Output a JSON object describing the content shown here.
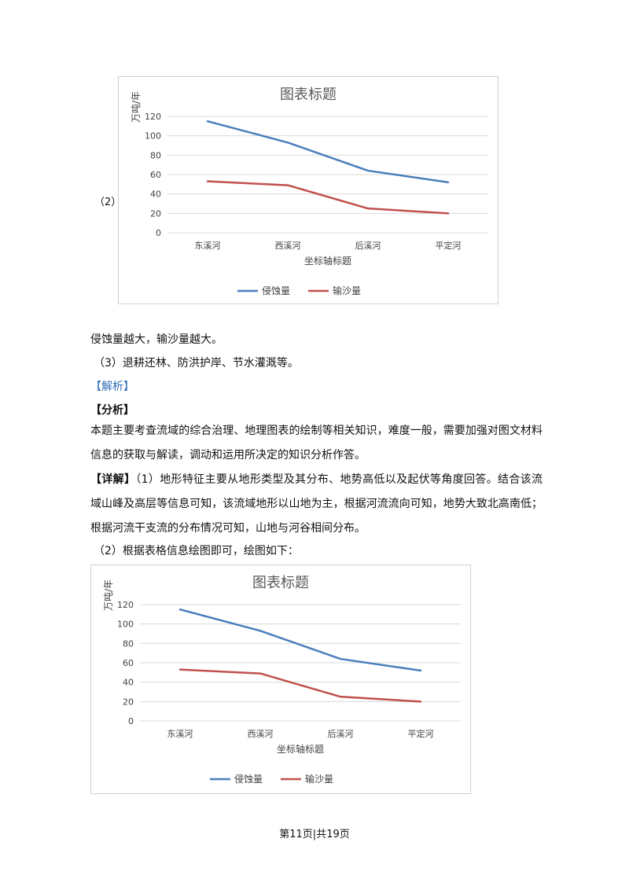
{
  "charts": [
    {
      "part_label": "（2）",
      "chart_data": {
        "type": "line",
        "title": "图表标题",
        "xlabel": "坐标轴标题",
        "ylabel": "万吨/年",
        "categories": [
          "东溪河",
          "西溪河",
          "后溪河",
          "平定河"
        ],
        "series": [
          {
            "name": "侵蚀量",
            "values": [
              115,
              93,
              64,
              52
            ],
            "color": "#4a7ebb"
          },
          {
            "name": "输沙量",
            "values": [
              53,
              49,
              25,
              20
            ],
            "color": "#c0504d"
          }
        ],
        "ylim": [
          0,
          120
        ],
        "yticks": [
          "0",
          "20",
          "40",
          "60",
          "80",
          "100",
          "120"
        ],
        "grid": true,
        "legend": "bottom"
      }
    },
    {
      "chart_data": {
        "type": "line",
        "title": "图表标题",
        "xlabel": "坐标轴标题",
        "ylabel": "万吨/年",
        "categories": [
          "东溪河",
          "西溪河",
          "后溪河",
          "平定河"
        ],
        "series": [
          {
            "name": "侵蚀量",
            "values": [
              115,
              93,
              64,
              52
            ],
            "color": "#4a7ebb"
          },
          {
            "name": "输沙量",
            "values": [
              53,
              49,
              25,
              20
            ],
            "color": "#c0504d"
          }
        ],
        "ylim": [
          0,
          120
        ],
        "yticks": [
          "0",
          "20",
          "40",
          "60",
          "80",
          "100",
          "120"
        ],
        "grid": true,
        "legend": "bottom"
      }
    }
  ],
  "text": {
    "answer_line": "侵蚀量越大，输沙量越大。",
    "item3": "（3）退耕还林、防洪护岸、节水灌溉等。",
    "analysis_tag": "【解析】",
    "fenxi_tag": "【分析】",
    "fenxi_body": "本题主要考查流域的综合治理、地理图表的绘制等相关知识，难度一般，需要加强对图文材料信息的获取与解读，调动和运用所决定的知识分析作答。",
    "detail_tag": "【详解】",
    "detail_body": "（1）地形特征主要从地形类型及其分布、地势高低以及起伏等角度回答。结合该流域山峰及高层等信息可知，该流域地形以山地为主，根据河流流向可知，地势大致北高南低；根据河流干支流的分布情况可知，山地与河谷相间分布。",
    "item2": "（2）根据表格信息绘图即可，绘图如下："
  },
  "footer": "第11页|共19页"
}
